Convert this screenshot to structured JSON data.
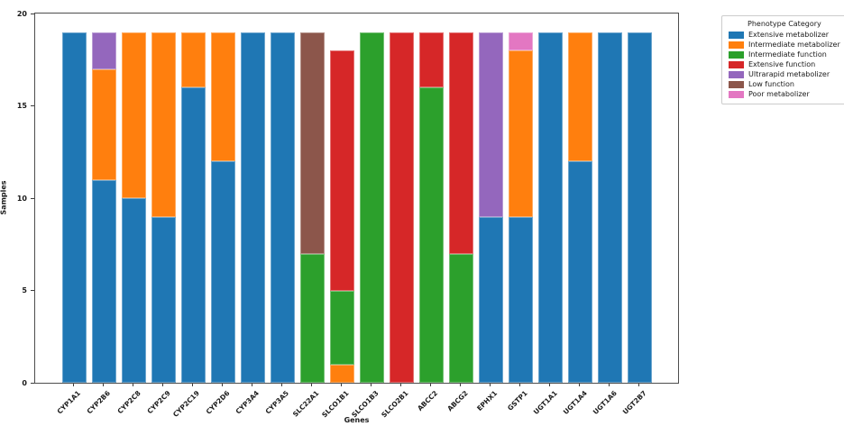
{
  "chart_data": {
    "type": "bar",
    "stacked": true,
    "title": "",
    "xlabel": "Genes",
    "ylabel": "Samples",
    "ylim": [
      0,
      20
    ],
    "yticks": [
      0,
      5,
      10,
      15,
      20
    ],
    "grid": false,
    "legend_title": "Phenotype Category",
    "legend_position": "upper right outside plot",
    "categories": [
      "CYP1A1",
      "CYP2B6",
      "CYP2C8",
      "CYP2C9",
      "CYP2C19",
      "CYP2D6",
      "CYP3A4",
      "CYP3A5",
      "SLC22A1",
      "SLCO1B1",
      "SLCO1B3",
      "SLCO2B1",
      "ABCC2",
      "ABCG2",
      "EPHX1",
      "GSTP1",
      "UGT1A1",
      "UGT1A4",
      "UGT1A6",
      "UGT2B7"
    ],
    "series": [
      {
        "name": "Extensive metabolizer",
        "color": "#1f77b4",
        "values": [
          19,
          11,
          10,
          9,
          16,
          12,
          19,
          19,
          0,
          0,
          0,
          0,
          0,
          0,
          9,
          9,
          19,
          12,
          19,
          19
        ]
      },
      {
        "name": "Intermediate metabolizer",
        "color": "#ff7f0e",
        "values": [
          0,
          6,
          9,
          10,
          3,
          7,
          0,
          0,
          0,
          1,
          0,
          0,
          0,
          0,
          0,
          9,
          0,
          7,
          0,
          0
        ]
      },
      {
        "name": "Intermediate function",
        "color": "#2ca02c",
        "values": [
          0,
          0,
          0,
          0,
          0,
          0,
          0,
          0,
          7,
          4,
          19,
          0,
          16,
          7,
          0,
          0,
          0,
          0,
          0,
          0
        ]
      },
      {
        "name": "Extensive function",
        "color": "#d62728",
        "values": [
          0,
          0,
          0,
          0,
          0,
          0,
          0,
          0,
          0,
          13,
          0,
          19,
          3,
          12,
          0,
          0,
          0,
          0,
          0,
          0
        ]
      },
      {
        "name": "Ultrarapid metabolizer",
        "color": "#9467bd",
        "values": [
          0,
          2,
          0,
          0,
          0,
          0,
          0,
          0,
          0,
          0,
          0,
          0,
          0,
          0,
          10,
          0,
          0,
          0,
          0,
          0
        ]
      },
      {
        "name": "Low function",
        "color": "#8c564b",
        "values": [
          0,
          0,
          0,
          0,
          0,
          0,
          0,
          0,
          12,
          0,
          0,
          0,
          0,
          0,
          0,
          0,
          0,
          0,
          0,
          0
        ]
      },
      {
        "name": "Poor metabolizer",
        "color": "#e377c2",
        "values": [
          0,
          0,
          0,
          0,
          0,
          0,
          0,
          0,
          0,
          0,
          0,
          0,
          0,
          0,
          0,
          1,
          0,
          0,
          0,
          0
        ]
      }
    ]
  }
}
